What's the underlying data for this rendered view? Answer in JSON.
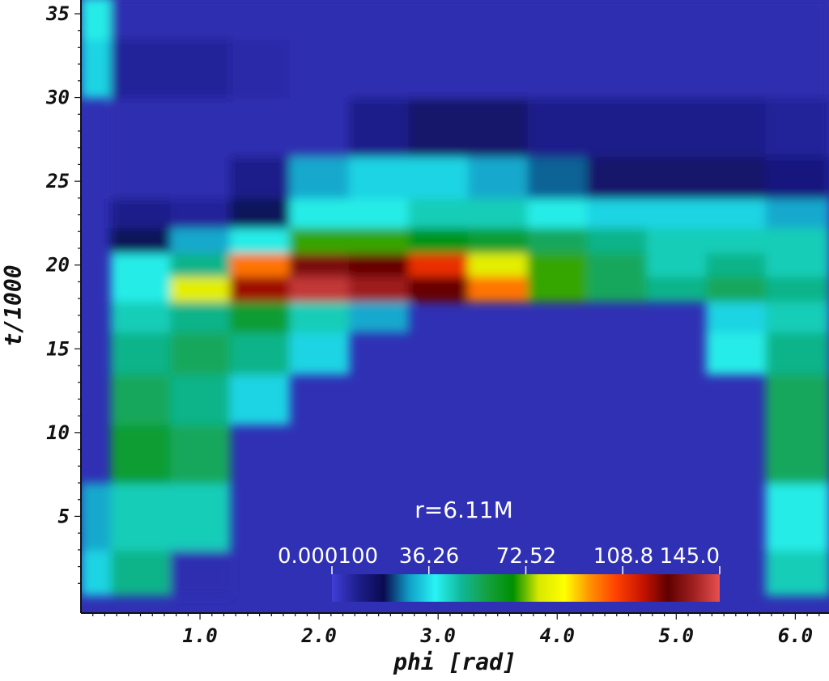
{
  "chart_data": {
    "type": "heatmap",
    "title": "",
    "xlabel": "phi [rad]",
    "ylabel": "t/1000",
    "xlim": [
      0.0,
      6.283
    ],
    "ylim": [
      0.0,
      36.0
    ],
    "x_ticks": [
      "1.0",
      "2.0",
      "3.0",
      "4.0",
      "5.0",
      "6.0"
    ],
    "y_ticks": [
      "5",
      "10",
      "15",
      "20",
      "25",
      "30",
      "35"
    ],
    "annotation": "r=6.11M",
    "colorbar": {
      "min": 0.0001,
      "max": 145.0,
      "tick_labels": [
        "0.000100",
        "36.26",
        "72.52",
        "108.8",
        "145.0"
      ],
      "colors": [
        "#3f3fd6",
        "#1e1e8c",
        "#0a0a50",
        "#10a0c8",
        "#28f4f4",
        "#10b898",
        "#14a040",
        "#009000",
        "#d8e800",
        "#ffff00",
        "#ff9000",
        "#ff4000",
        "#c81400",
        "#600000",
        "#a02020",
        "#e85050"
      ]
    },
    "background_color": "#3030b4",
    "sampled_field": {
      "description": "color field value by phi (rows) at sample times",
      "t_samples": [
        1,
        5,
        9,
        12,
        15,
        17,
        18.7,
        20,
        21.5,
        23,
        25,
        28,
        32,
        35
      ],
      "phi_samples": [
        0.0,
        0.5,
        1.0,
        1.5,
        2.0,
        2.5,
        3.0,
        3.5,
        4.0,
        4.5,
        5.0,
        5.5,
        6.0
      ],
      "values": [
        [
          35,
          30,
          0,
          0,
          0,
          0,
          0,
          0,
          0,
          0,
          0,
          0,
          35,
          40
        ],
        [
          50,
          45,
          60,
          55,
          50,
          45,
          40,
          40,
          20,
          10,
          5,
          5,
          8,
          5
        ],
        [
          5,
          45,
          55,
          50,
          55,
          50,
          80,
          50,
          30,
          8,
          5,
          5,
          8,
          5
        ],
        [
          0,
          0,
          0,
          35,
          50,
          60,
          120,
          100,
          40,
          20,
          10,
          5,
          6,
          5
        ],
        [
          0,
          0,
          0,
          0,
          35,
          45,
          140,
          130,
          70,
          40,
          30,
          5,
          5,
          5
        ],
        [
          0,
          0,
          0,
          0,
          0,
          30,
          135,
          125,
          70,
          40,
          35,
          10,
          5,
          5
        ],
        [
          0,
          0,
          0,
          0,
          0,
          0,
          125,
          110,
          65,
          45,
          35,
          15,
          5,
          5
        ],
        [
          0,
          0,
          0,
          0,
          0,
          0,
          100,
          80,
          60,
          45,
          30,
          15,
          5,
          5
        ],
        [
          0,
          0,
          0,
          0,
          0,
          0,
          70,
          70,
          55,
          40,
          25,
          10,
          5,
          5
        ],
        [
          0,
          0,
          0,
          0,
          0,
          0,
          55,
          55,
          50,
          35,
          15,
          10,
          5,
          5
        ],
        [
          0,
          0,
          0,
          0,
          0,
          0,
          50,
          45,
          45,
          35,
          15,
          10,
          5,
          5
        ],
        [
          0,
          0,
          0,
          0,
          40,
          35,
          55,
          50,
          45,
          35,
          15,
          10,
          5,
          5
        ],
        [
          45,
          40,
          55,
          55,
          50,
          45,
          50,
          45,
          45,
          30,
          12,
          8,
          5,
          5
        ]
      ]
    }
  }
}
